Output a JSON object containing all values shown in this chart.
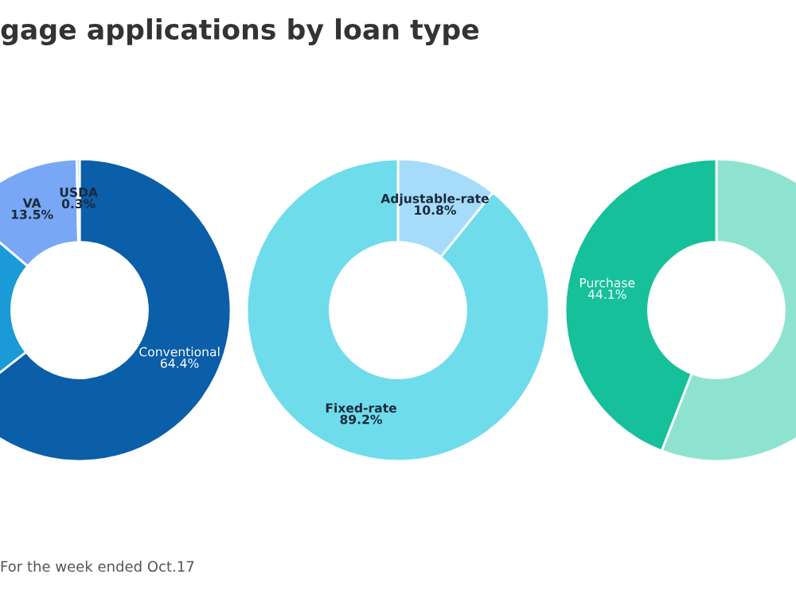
{
  "chart_data": [
    {
      "type": "donut",
      "title": "gage applications by loan type",
      "annotations": [
        "For the week ended Oct.17"
      ],
      "categories": [
        "Conventional",
        null,
        "VA",
        "USDA"
      ],
      "values": [
        64.4,
        21.8,
        13.5,
        0.3
      ],
      "value_labels": [
        "64.4%",
        null,
        "13.5%",
        "0.3%"
      ],
      "colors": [
        "#0b5ea8",
        "#1a9ad6",
        "#78a8f5",
        "#8fc4f0"
      ]
    },
    {
      "type": "donut",
      "categories": [
        "Adjustable-rate",
        "Fixed-rate"
      ],
      "values": [
        10.8,
        89.2
      ],
      "value_labels": [
        "10.8%",
        "89.2%"
      ],
      "colors": [
        "#a6dcfa",
        "#6fdcec"
      ]
    },
    {
      "type": "donut",
      "categories": [
        null,
        "Purchase"
      ],
      "values": [
        55.9,
        44.1
      ],
      "value_labels": [
        null,
        "44.1%"
      ],
      "colors": [
        "#8ee3d0",
        "#16c09a"
      ]
    }
  ]
}
